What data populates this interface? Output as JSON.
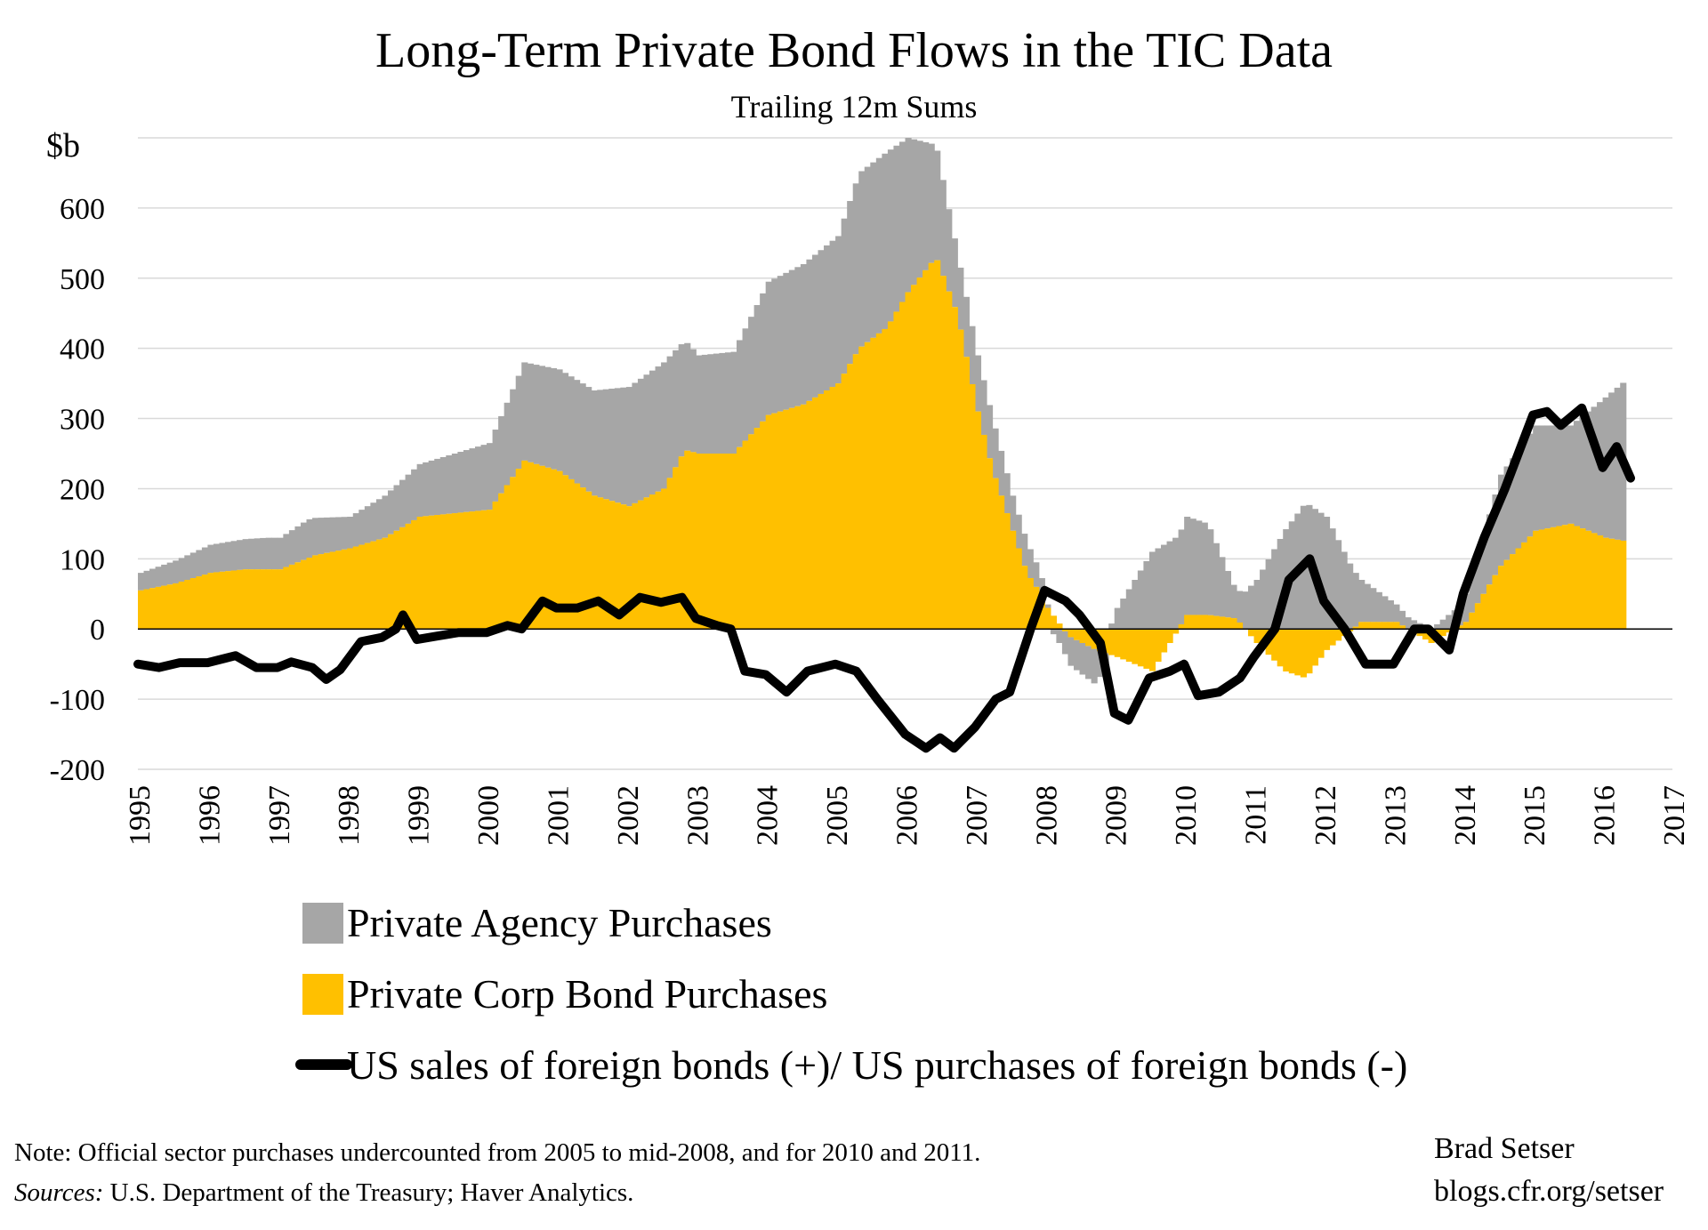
{
  "chart_data": {
    "type": "bar",
    "title": "Long-Term Private Bond Flows in the TIC Data",
    "subtitle": "Trailing 12m Sums",
    "ylabel": "$b",
    "ylim": [
      -200,
      700
    ],
    "y_ticks": [
      "600",
      "500",
      "400",
      "300",
      "200",
      "100",
      "0",
      "-100",
      "-200"
    ],
    "x_ticks": [
      "1995",
      "1996",
      "1997",
      "1998",
      "1999",
      "2000",
      "2001",
      "2002",
      "2003",
      "2004",
      "2005",
      "2006",
      "2007",
      "2008",
      "2009",
      "2010",
      "2011",
      "2012",
      "2013",
      "2014",
      "2015",
      "2016",
      "2017"
    ],
    "xlim": [
      1995,
      2017
    ],
    "grid": true,
    "legend_position": "bottom",
    "series": [
      {
        "name": "Private Agency Purchases",
        "color": "#a6a6a6",
        "kind": "stacked-bar",
        "points": [
          [
            1995,
            25
          ],
          [
            1996,
            40
          ],
          [
            1996.8,
            45
          ],
          [
            1997,
            45
          ],
          [
            1997.4,
            55
          ],
          [
            1998,
            45
          ],
          [
            1999,
            75
          ],
          [
            2000,
            95
          ],
          [
            2000.5,
            140
          ],
          [
            2001,
            145
          ],
          [
            2001.5,
            150
          ],
          [
            2002,
            170
          ],
          [
            2002.5,
            180
          ],
          [
            2003,
            140
          ],
          [
            2003.5,
            145
          ],
          [
            2004,
            190
          ],
          [
            2004.5,
            200
          ],
          [
            2005,
            210
          ],
          [
            2005.3,
            250
          ],
          [
            2005.7,
            250
          ],
          [
            2006,
            220
          ],
          [
            2006.4,
            160
          ],
          [
            2006.7,
            90
          ],
          [
            2007,
            80
          ],
          [
            2007.2,
            75
          ],
          [
            2007.5,
            50
          ],
          [
            2007.7,
            45
          ],
          [
            2007.9,
            30
          ],
          [
            2008,
            5
          ],
          [
            2008.3,
            -40
          ],
          [
            2008.7,
            -50
          ],
          [
            2009,
            30
          ],
          [
            2009.5,
            110
          ],
          [
            2010,
            140
          ],
          [
            2010.3,
            130
          ],
          [
            2010.7,
            40
          ],
          [
            2011,
            70
          ],
          [
            2011.4,
            140
          ],
          [
            2011.7,
            180
          ],
          [
            2012,
            160
          ],
          [
            2012.5,
            60
          ],
          [
            2013,
            25
          ],
          [
            2013.5,
            0
          ],
          [
            2014,
            40
          ],
          [
            2014.5,
            130
          ],
          [
            2015,
            150
          ],
          [
            2015.5,
            140
          ],
          [
            2016,
            200
          ],
          [
            2016.3,
            230
          ]
        ]
      },
      {
        "name": "Private Corp Bond Purchases",
        "color": "#ffc000",
        "kind": "stacked-bar",
        "points": [
          [
            1995,
            55
          ],
          [
            1995.5,
            65
          ],
          [
            1996,
            80
          ],
          [
            1996.5,
            85
          ],
          [
            1997,
            85
          ],
          [
            1997.5,
            105
          ],
          [
            1998,
            115
          ],
          [
            1998.5,
            130
          ],
          [
            1999,
            160
          ],
          [
            1999.5,
            165
          ],
          [
            2000,
            170
          ],
          [
            2000.5,
            240
          ],
          [
            2001,
            225
          ],
          [
            2001.5,
            190
          ],
          [
            2002,
            175
          ],
          [
            2002.5,
            200
          ],
          [
            2002.8,
            255
          ],
          [
            2003,
            250
          ],
          [
            2003.5,
            250
          ],
          [
            2004,
            305
          ],
          [
            2004.5,
            320
          ],
          [
            2005,
            350
          ],
          [
            2005.3,
            400
          ],
          [
            2005.7,
            430
          ],
          [
            2006,
            480
          ],
          [
            2006.4,
            530
          ],
          [
            2006.7,
            450
          ],
          [
            2007,
            310
          ],
          [
            2007.2,
            230
          ],
          [
            2007.5,
            140
          ],
          [
            2007.7,
            80
          ],
          [
            2007.9,
            50
          ],
          [
            2008,
            30
          ],
          [
            2008.3,
            -10
          ],
          [
            2008.7,
            -30
          ],
          [
            2009,
            -40
          ],
          [
            2009.5,
            -60
          ],
          [
            2010,
            20
          ],
          [
            2010.3,
            20
          ],
          [
            2010.7,
            15
          ],
          [
            2011,
            -20
          ],
          [
            2011.4,
            -60
          ],
          [
            2011.7,
            -70
          ],
          [
            2012,
            -30
          ],
          [
            2012.5,
            10
          ],
          [
            2013,
            10
          ],
          [
            2013.5,
            -20
          ],
          [
            2014,
            10
          ],
          [
            2014.5,
            90
          ],
          [
            2015,
            140
          ],
          [
            2015.5,
            150
          ],
          [
            2016,
            130
          ],
          [
            2016.3,
            125
          ]
        ]
      },
      {
        "name": "US sales of foreign bonds (+)/ US purchases of foreign bonds (-)",
        "color": "#000000",
        "kind": "line",
        "points": [
          [
            1995,
            -50
          ],
          [
            1995.3,
            -55
          ],
          [
            1995.6,
            -48
          ],
          [
            1996,
            -48
          ],
          [
            1996.4,
            -38
          ],
          [
            1996.7,
            -55
          ],
          [
            1997,
            -55
          ],
          [
            1997.2,
            -47
          ],
          [
            1997.5,
            -55
          ],
          [
            1997.7,
            -72
          ],
          [
            1997.9,
            -58
          ],
          [
            1998.2,
            -18
          ],
          [
            1998.5,
            -12
          ],
          [
            1998.7,
            0
          ],
          [
            1998.8,
            20
          ],
          [
            1999,
            -15
          ],
          [
            1999.3,
            -10
          ],
          [
            1999.6,
            -5
          ],
          [
            2000,
            -5
          ],
          [
            2000.3,
            5
          ],
          [
            2000.5,
            0
          ],
          [
            2000.8,
            40
          ],
          [
            2001,
            30
          ],
          [
            2001.3,
            30
          ],
          [
            2001.6,
            40
          ],
          [
            2001.9,
            20
          ],
          [
            2002.2,
            45
          ],
          [
            2002.5,
            38
          ],
          [
            2002.8,
            45
          ],
          [
            2003,
            15
          ],
          [
            2003.3,
            5
          ],
          [
            2003.5,
            0
          ],
          [
            2003.7,
            -60
          ],
          [
            2004,
            -65
          ],
          [
            2004.3,
            -90
          ],
          [
            2004.6,
            -60
          ],
          [
            2005,
            -50
          ],
          [
            2005.3,
            -60
          ],
          [
            2005.6,
            -100
          ],
          [
            2006,
            -150
          ],
          [
            2006.3,
            -170
          ],
          [
            2006.5,
            -155
          ],
          [
            2006.7,
            -170
          ],
          [
            2007,
            -140
          ],
          [
            2007.3,
            -100
          ],
          [
            2007.5,
            -90
          ],
          [
            2007.8,
            0
          ],
          [
            2008,
            55
          ],
          [
            2008.3,
            40
          ],
          [
            2008.5,
            20
          ],
          [
            2008.8,
            -20
          ],
          [
            2009,
            -120
          ],
          [
            2009.2,
            -130
          ],
          [
            2009.5,
            -70
          ],
          [
            2009.8,
            -60
          ],
          [
            2010,
            -50
          ],
          [
            2010.2,
            -95
          ],
          [
            2010.5,
            -90
          ],
          [
            2010.8,
            -70
          ],
          [
            2011,
            -40
          ],
          [
            2011.3,
            0
          ],
          [
            2011.5,
            70
          ],
          [
            2011.8,
            100
          ],
          [
            2012,
            40
          ],
          [
            2012.3,
            0
          ],
          [
            2012.6,
            -50
          ],
          [
            2013,
            -50
          ],
          [
            2013.3,
            0
          ],
          [
            2013.5,
            0
          ],
          [
            2013.8,
            -30
          ],
          [
            2014,
            50
          ],
          [
            2014.3,
            130
          ],
          [
            2014.6,
            200
          ],
          [
            2015,
            305
          ],
          [
            2015.2,
            310
          ],
          [
            2015.4,
            290
          ],
          [
            2015.7,
            315
          ],
          [
            2016,
            230
          ],
          [
            2016.2,
            260
          ],
          [
            2016.4,
            215
          ]
        ]
      }
    ]
  },
  "legend": [
    {
      "label": "Private Agency Purchases",
      "color": "#a6a6a6",
      "kind": "square"
    },
    {
      "label": "Private Corp Bond Purchases",
      "color": "#ffc000",
      "kind": "square"
    },
    {
      "label": "US sales of foreign bonds (+)/ US purchases of foreign bonds (-)",
      "color": "#000000",
      "kind": "line"
    }
  ],
  "footer": {
    "note": "Note: Official sector purchases undercounted from 2005 to mid-2008, and for 2010 and 2011.",
    "sources_label": "Sources:",
    "sources_text": " U.S. Department of the Treasury; Haver Analytics.",
    "author": "Brad Setser",
    "site": "blogs.cfr.org/setser"
  }
}
